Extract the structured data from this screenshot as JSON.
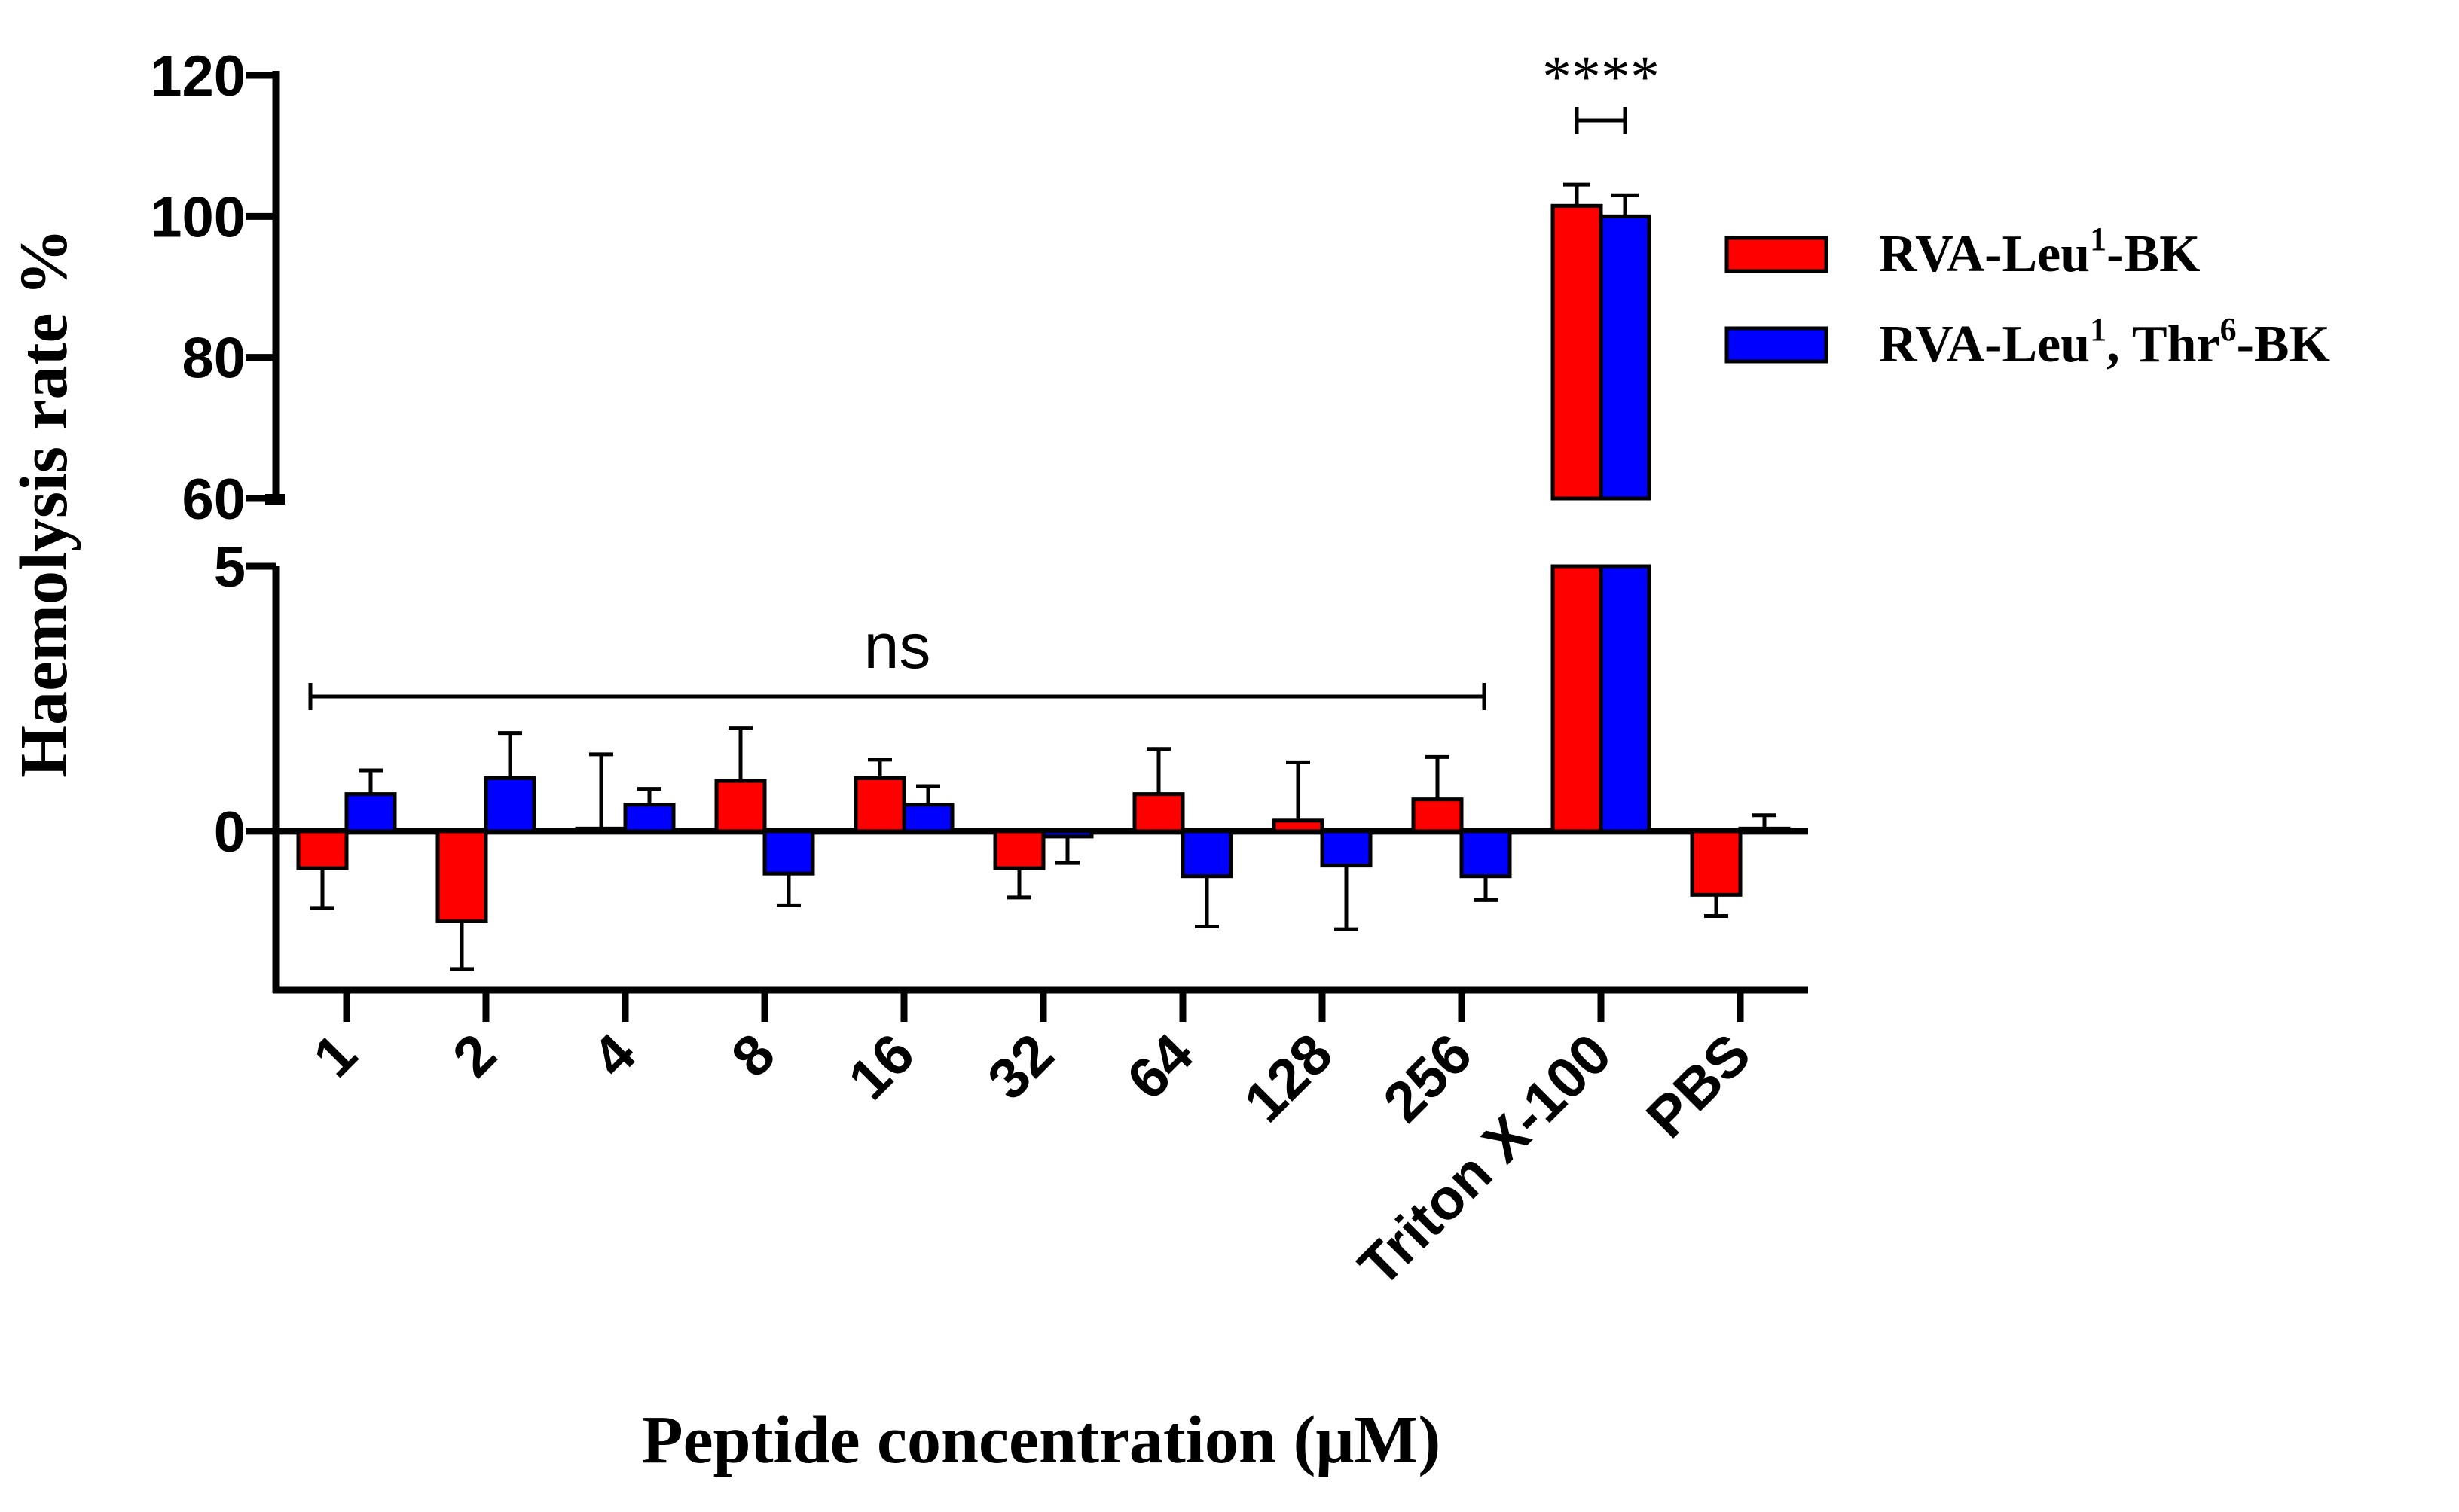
{
  "chart_data": {
    "type": "bar",
    "title": "",
    "xlabel": "Peptide concentration (μM)",
    "ylabel": "Haemolysis rate %",
    "categories": [
      "1",
      "2",
      "4",
      "8",
      "16",
      "32",
      "64",
      "128",
      "256",
      "Triton X-100",
      "PBS"
    ],
    "series": [
      {
        "name": "RVA-Leu¹-BK",
        "legend_main": "RVA-Leu",
        "legend_sup": "1",
        "legend_tail": "-BK",
        "color": "#ff0000",
        "values": [
          -0.7,
          -1.7,
          0.05,
          0.95,
          1.0,
          -0.7,
          0.7,
          0.2,
          0.6,
          101.5,
          -1.2
        ],
        "errors": [
          0.75,
          0.9,
          1.4,
          1.0,
          0.35,
          0.55,
          0.85,
          1.1,
          0.8,
          3.0,
          0.4
        ]
      },
      {
        "name": "RVA-Leu¹, Thr⁶-BK",
        "legend_main": "RVA-Leu",
        "legend_sup": "1",
        "legend_mid": ", Thr",
        "legend_sup2": "6",
        "legend_tail": "-BK",
        "color": "#0000ff",
        "values": [
          0.7,
          1.0,
          0.5,
          -0.8,
          0.5,
          -0.1,
          -0.85,
          -0.65,
          -0.85,
          100.0,
          0.05
        ],
        "errors": [
          0.45,
          0.85,
          0.3,
          0.6,
          0.35,
          0.5,
          0.95,
          1.2,
          0.45,
          3.0,
          0.25
        ]
      }
    ],
    "y_axis_segments": [
      {
        "range": [
          -3,
          5
        ],
        "ticks": [
          0,
          5
        ],
        "tick_labels": [
          "0",
          "5"
        ]
      },
      {
        "range": [
          60,
          120
        ],
        "ticks": [
          60,
          80,
          100,
          120
        ],
        "tick_labels": [
          "60",
          "80",
          "100",
          "120"
        ]
      }
    ],
    "annotations": [
      {
        "text": "ns",
        "from_category": "1",
        "to_category": "256"
      },
      {
        "text": "****",
        "between_series_at": "Triton X-100"
      }
    ],
    "legend_position": "right",
    "grid": false
  }
}
